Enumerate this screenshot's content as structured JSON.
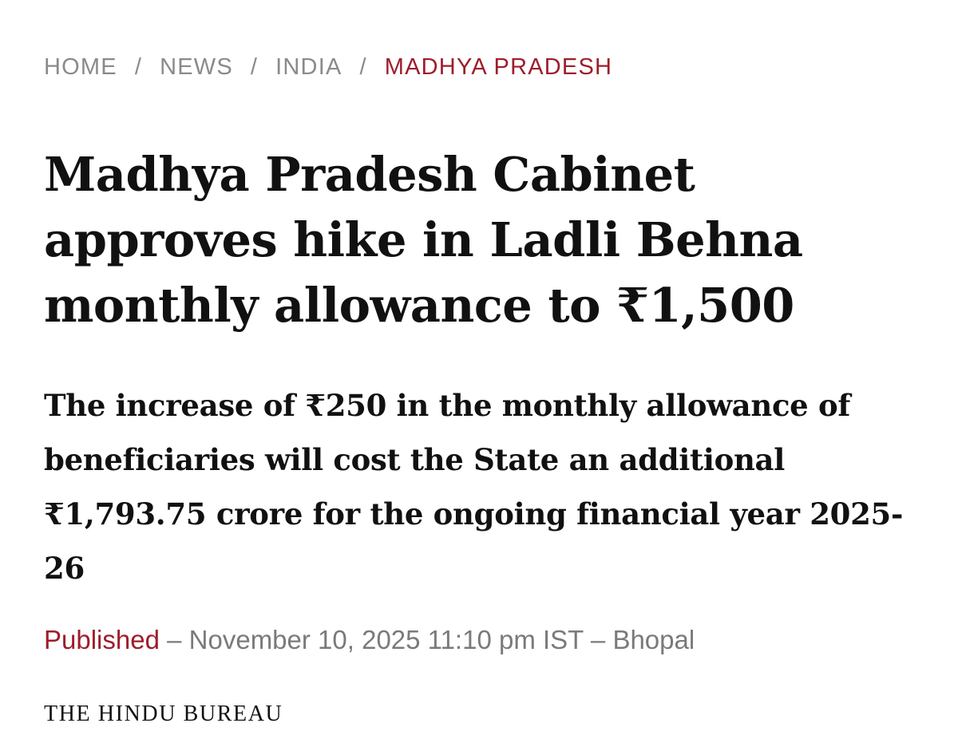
{
  "breadcrumb": {
    "items": [
      {
        "label": "HOME"
      },
      {
        "label": "NEWS"
      },
      {
        "label": "INDIA"
      },
      {
        "label": "MADHYA PRADESH"
      }
    ],
    "separator": "/"
  },
  "article": {
    "headline": "Madhya Pradesh Cabinet approves hike in Ladli Behna monthly allowance to ₹1,500",
    "dek": "The increase of ₹250 in the monthly allowance of beneficiaries will cost the State an additional ₹1,793.75 crore for the ongoing financial year 2025-26",
    "published_label": "Published",
    "published_dash_1": " – ",
    "published_datetime": "November 10, 2025 11:10 pm IST",
    "published_dash_2": " – ",
    "published_location": "Bhopal",
    "byline": "THE HINDU BUREAU"
  },
  "colors": {
    "accent": "#9e1d2b",
    "muted": "#8a8a8a",
    "text": "#111111"
  }
}
